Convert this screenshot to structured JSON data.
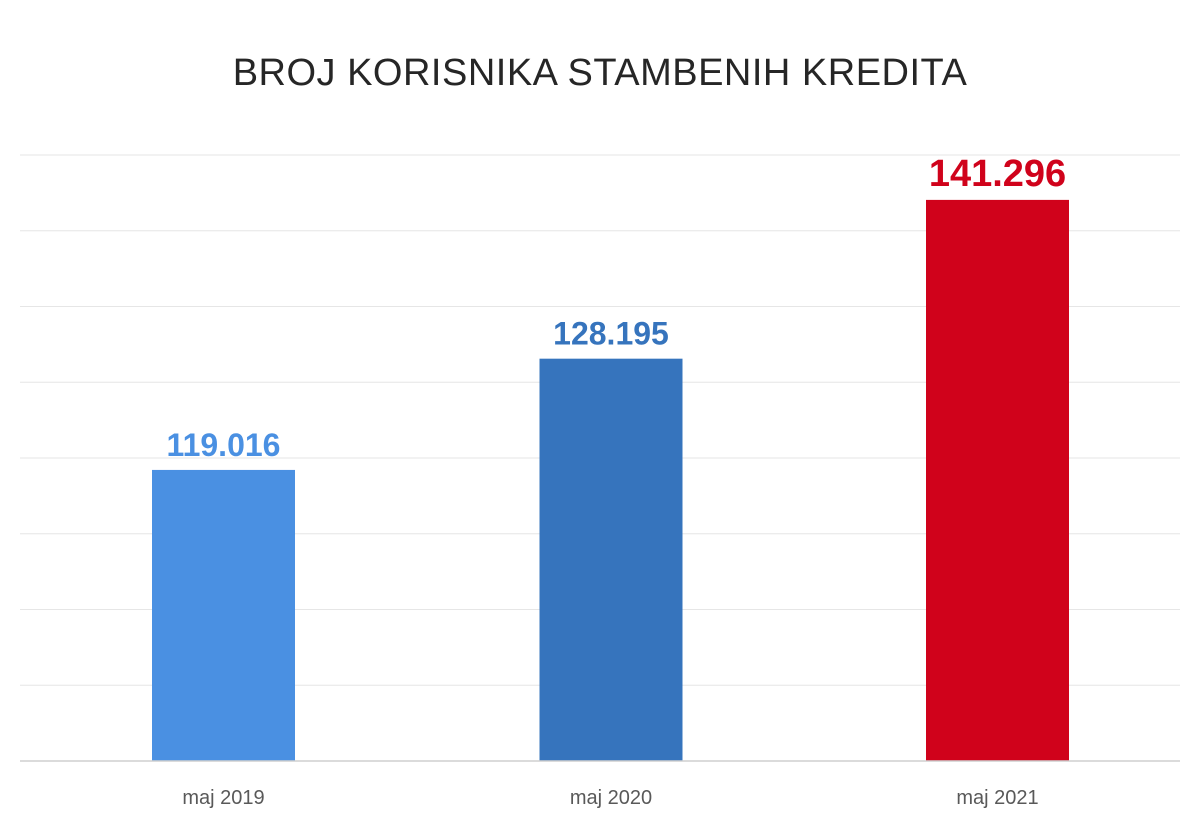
{
  "chart_data": {
    "type": "bar",
    "title": "BROJ KORISNIKA STAMBENIH KREDITA",
    "xlabel": "",
    "ylabel": "",
    "categories": [
      "maj 2019",
      "maj 2020",
      "maj 2021"
    ],
    "values": [
      119016,
      128195,
      141296
    ],
    "value_labels": [
      "119.016",
      "128.195",
      "141.296"
    ],
    "bar_colors": [
      "#4a90e2",
      "#3674bd",
      "#d0021b"
    ],
    "ylim": [
      95000,
      145000
    ],
    "gridlines": 8,
    "grid": true,
    "legend": "none"
  }
}
